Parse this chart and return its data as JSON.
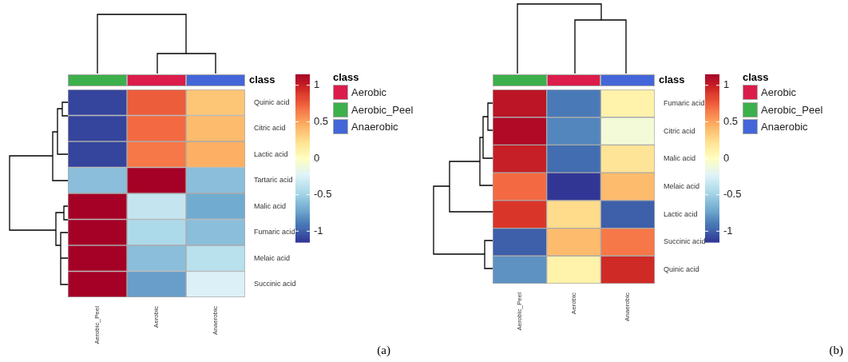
{
  "chart_data": [
    {
      "type": "heatmap",
      "categories": [
        "Aerobic_Peel",
        "Aerobic",
        "Anaerobic"
      ],
      "y_categories": [
        "Quinic acid",
        "Citric acid",
        "Lactic acid",
        "Tartaric acid",
        "Malic acid",
        "Fumaric acid",
        "Melaic acid",
        "Succinic acid"
      ],
      "cells": [
        [
          -1.1,
          0.75,
          0.35
        ],
        [
          -1.1,
          0.7,
          0.4
        ],
        [
          -1.1,
          0.65,
          0.45
        ],
        [
          -0.6,
          1.15,
          -0.6
        ],
        [
          1.15,
          -0.35,
          -0.7
        ],
        [
          1.15,
          -0.45,
          -0.6
        ],
        [
          1.15,
          -0.6,
          -0.4
        ],
        [
          1.15,
          -0.75,
          -0.25
        ]
      ],
      "clim": [
        -1.15,
        1.15
      ],
      "cticks": [
        -1,
        -0.5,
        0,
        0.5,
        1
      ],
      "colors": [
        "#dc1c4b",
        "#3cb04a",
        "#4466d9"
      ],
      "legend_title": "class",
      "annotations": [
        "class",
        "Aerobic",
        "Aerobic_Peel",
        "Anaerobic",
        "(a)"
      ]
    },
    {
      "type": "heatmap",
      "categories": [
        "Aerobic_Peel",
        "Aerobic",
        "Anaerobic"
      ],
      "y_categories": [
        "Fumaric acid",
        "Citric acid",
        "Malic acid",
        "Melaic acid",
        "Lactic acid",
        "Succinic acid",
        "Quinic acid"
      ],
      "cells": [
        [
          1.05,
          -0.9,
          0.1
        ],
        [
          1.1,
          -0.85,
          -0.1
        ],
        [
          1.0,
          -0.95,
          0.2
        ],
        [
          0.7,
          -1.15,
          0.4
        ],
        [
          0.9,
          0.25,
          -1.0
        ],
        [
          -1.0,
          0.4,
          0.65
        ],
        [
          -0.8,
          0.1,
          0.95
        ]
      ],
      "clim": [
        -1.15,
        1.15
      ],
      "cticks": [
        -1,
        -0.5,
        0,
        0.5,
        1
      ],
      "colors": [
        "#dc1c4b",
        "#3cb04a",
        "#4466d9"
      ],
      "legend_title": "class",
      "annotations": [
        "class",
        "Aerobic",
        "Aerobic_Peel",
        "Anaerobic",
        "(b)"
      ]
    }
  ]
}
